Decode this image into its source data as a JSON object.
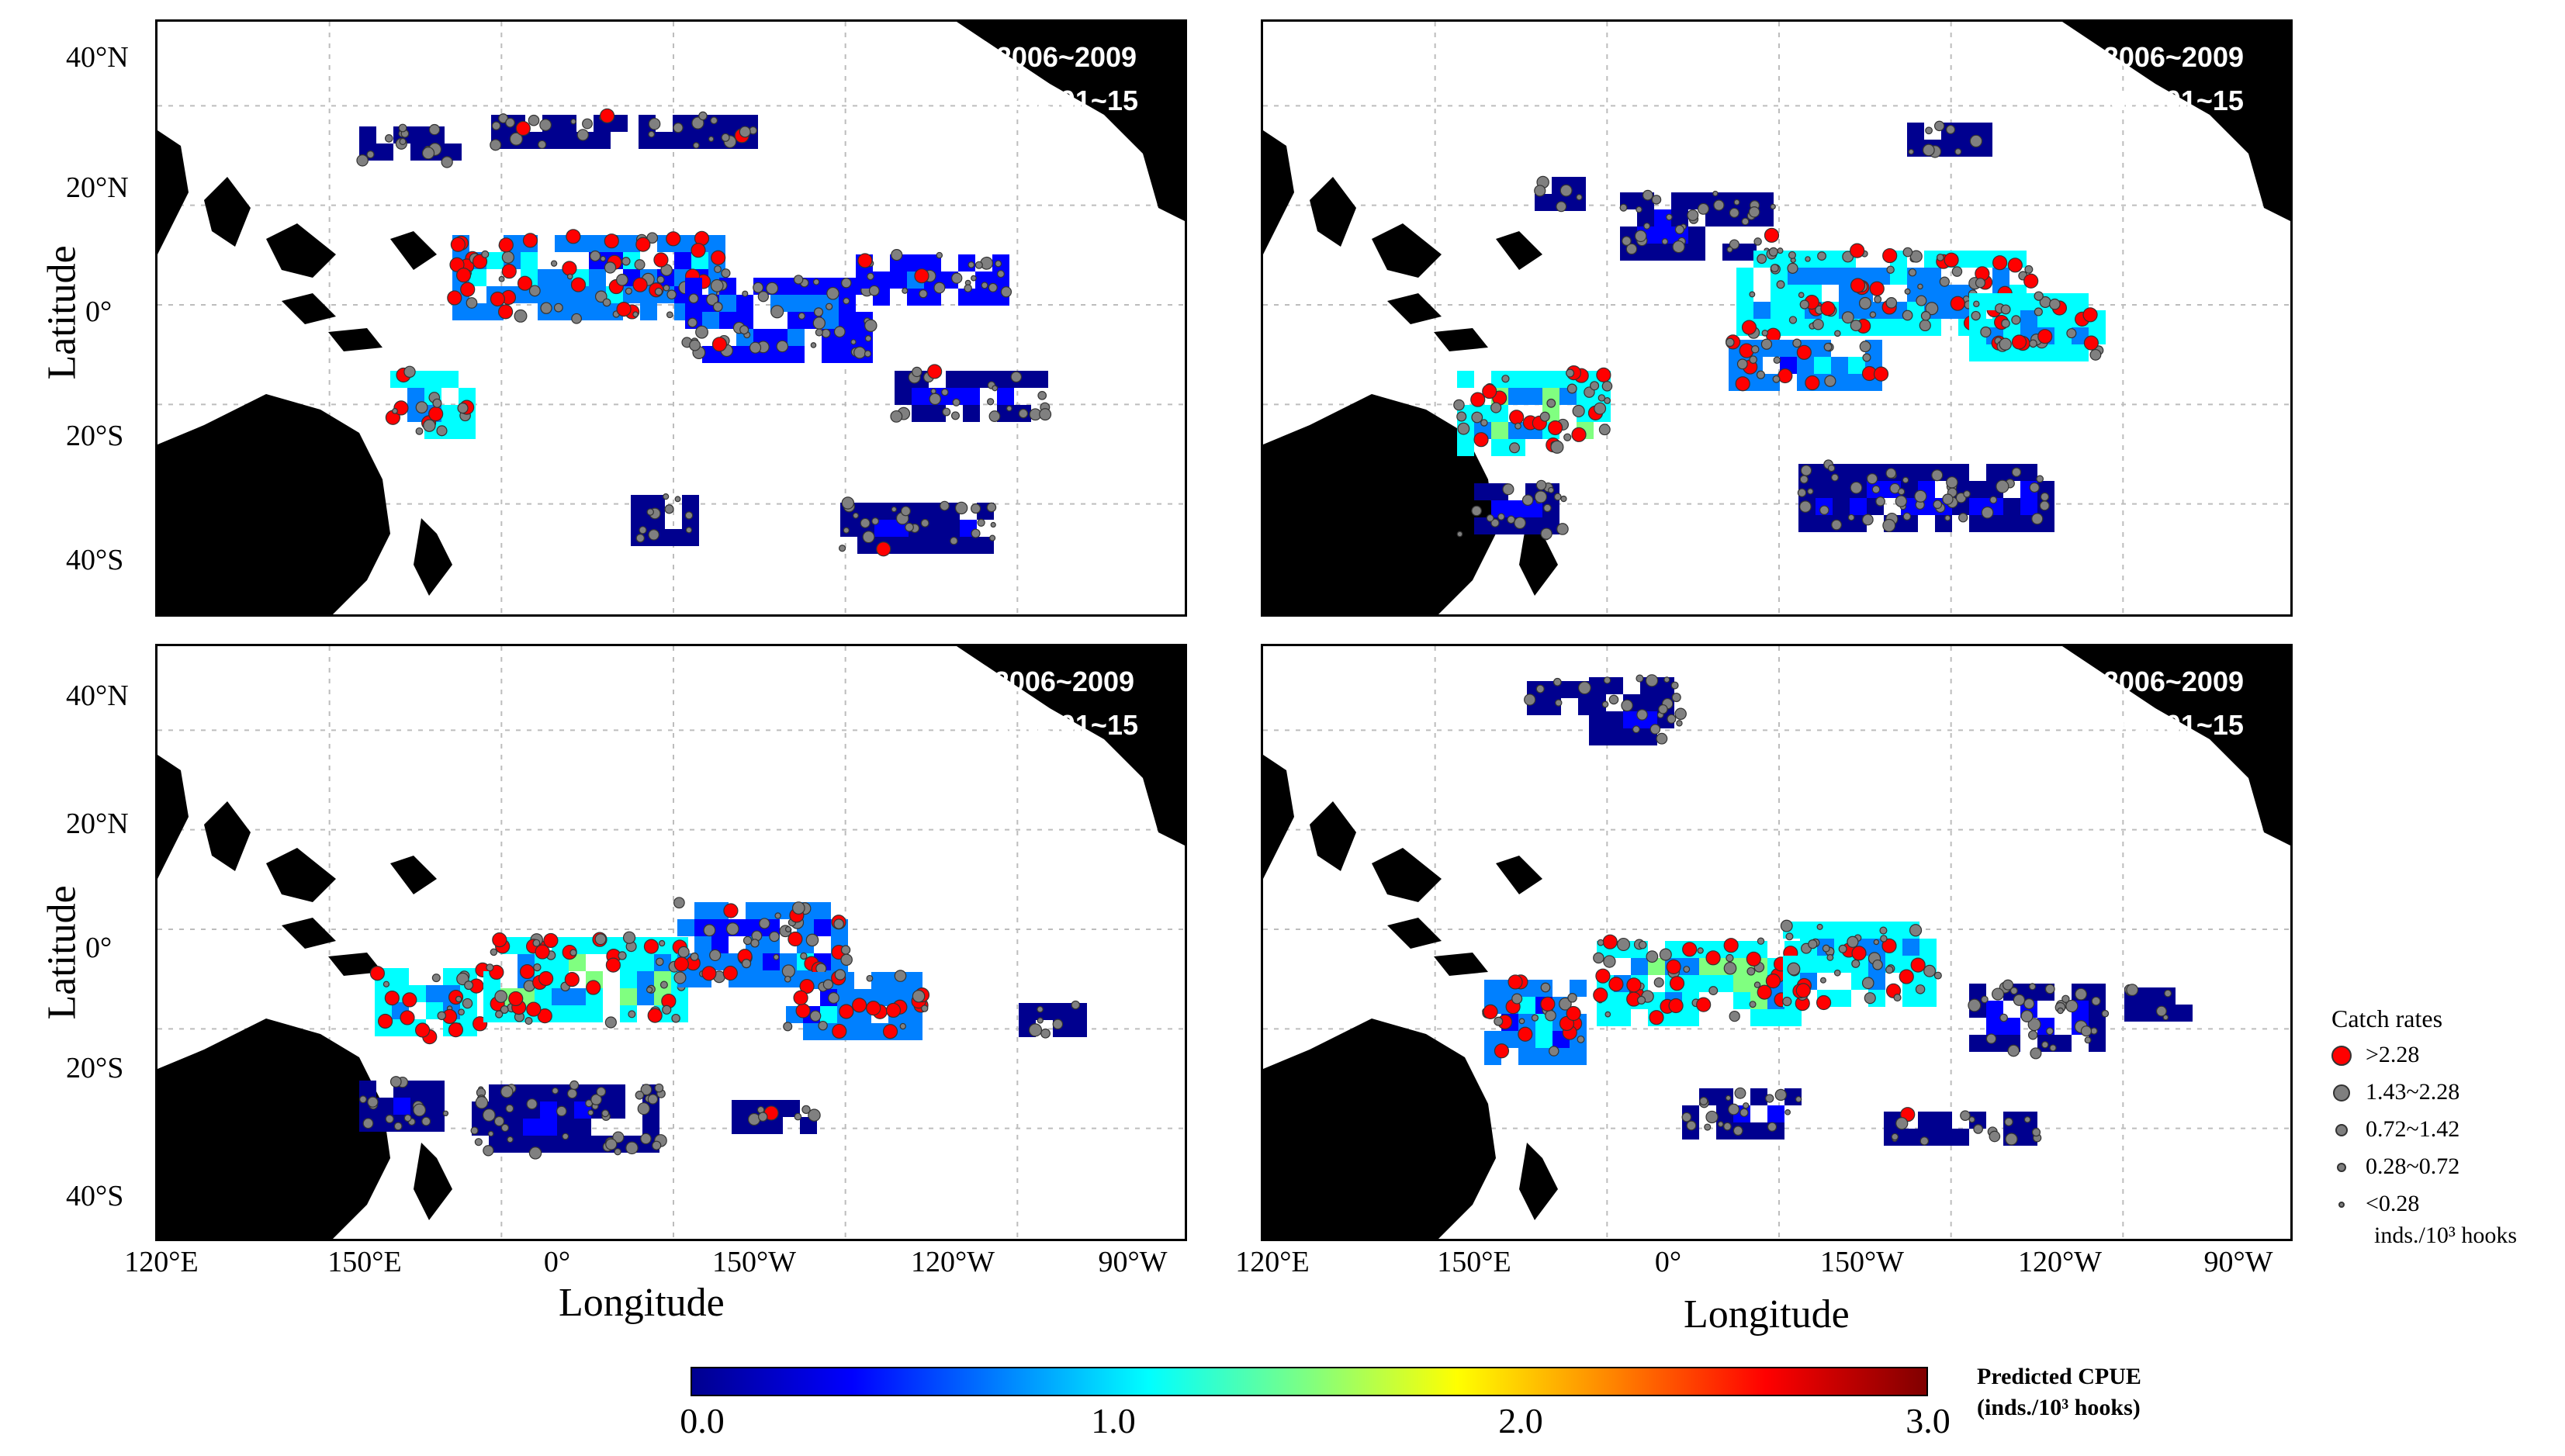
{
  "panels": [
    {
      "id": "p1",
      "period": "2006~2009",
      "date": "Feb. 01~15"
    },
    {
      "id": "p2",
      "period": "2006~2009",
      "date": "May 01~15"
    },
    {
      "id": "p3",
      "period": "2006~2009",
      "date": "Aug. 01~15"
    },
    {
      "id": "p4",
      "period": "2006~2009",
      "date": "Oct. 01~15"
    }
  ],
  "lat_labels": [
    "40°N",
    "20°N",
    "0°",
    "20°S",
    "40°S"
  ],
  "lon_labels": [
    "120°E",
    "150°E",
    "0°",
    "150°W",
    "120°W",
    "90°W"
  ],
  "axes": {
    "ylabel": "Latitude",
    "xlabel": "Longitude"
  },
  "legend": {
    "title": "Catch rates",
    "items": [
      {
        "label": ">2.28",
        "color": "#ff0000"
      },
      {
        "label": "1.43~2.28",
        "color": "#7f7f7f"
      },
      {
        "label": "0.72~1.42",
        "color": "#7f7f7f"
      },
      {
        "label": "0.28~0.72",
        "color": "#7f7f7f"
      },
      {
        "label": "<0.28",
        "color": "#7f7f7f"
      }
    ],
    "unit": "inds./10³ hooks"
  },
  "colorbar": {
    "ticks": [
      "0.0",
      "1.0",
      "2.0",
      "3.0"
    ],
    "label_line1": "Predicted CPUE",
    "label_line2": "(inds./10³ hooks)"
  },
  "colors": {
    "land": "#000000",
    "grid": "#bdbdbd",
    "high_dot": "#ff0000",
    "dot": "#808080"
  }
}
